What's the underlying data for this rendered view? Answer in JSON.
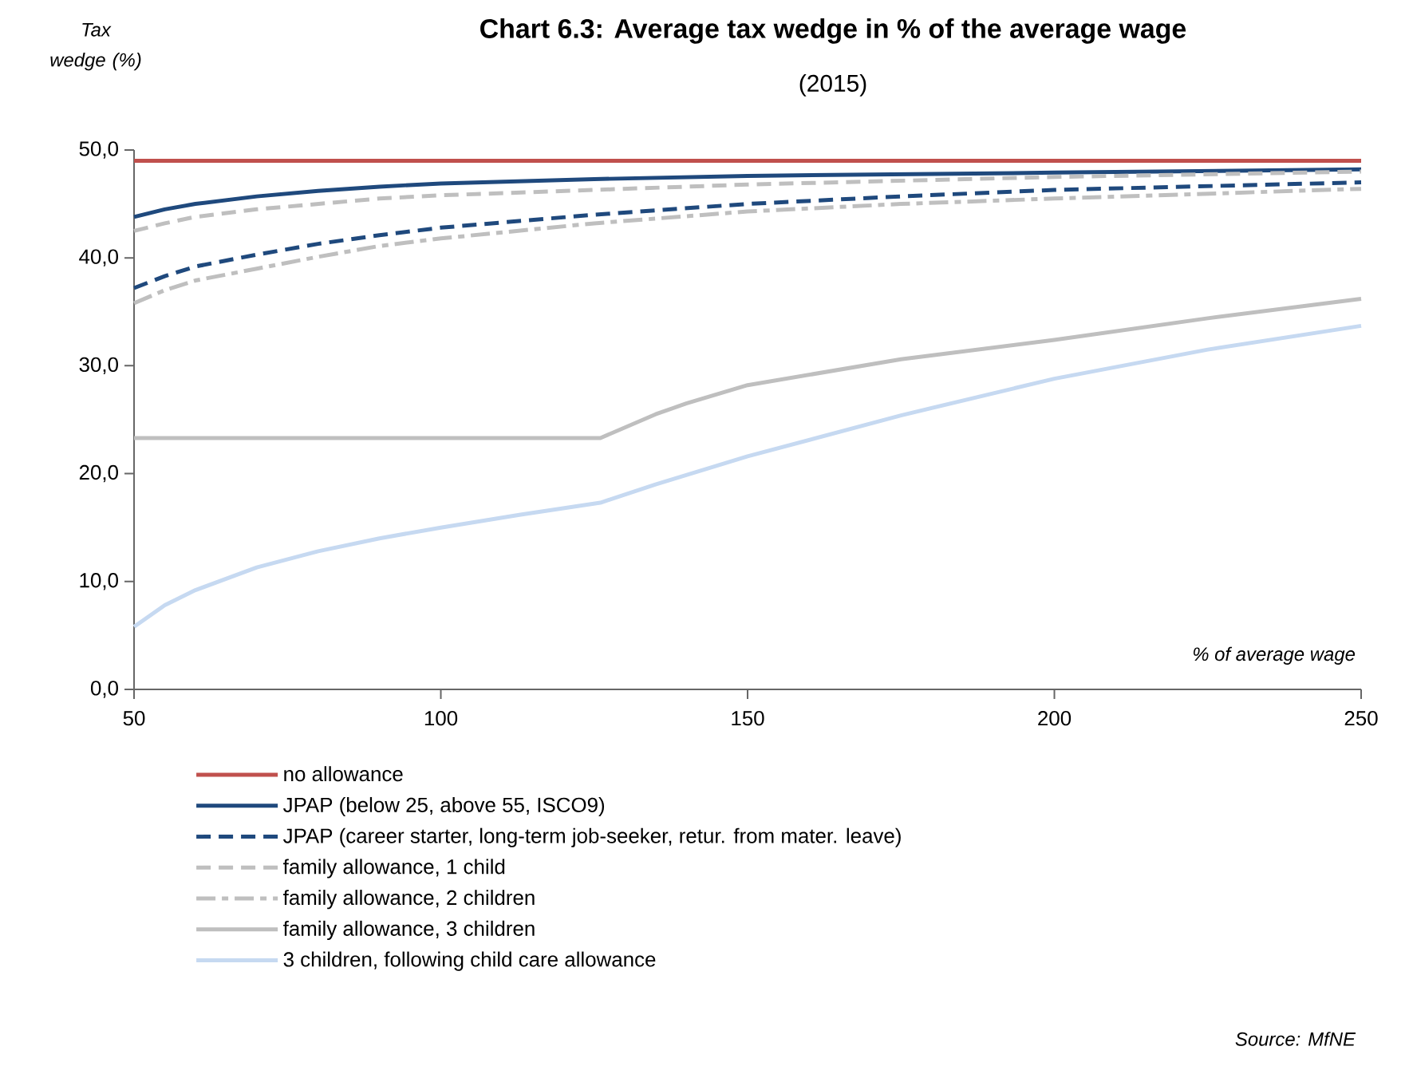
{
  "chart_data": {
    "type": "line",
    "title": "Chart 6.3: Average tax wedge in % of the average wage",
    "subtitle": "(2015)",
    "ylabel": "Tax wedge (%)",
    "xlabel": "% of average wage",
    "annotations": [
      "Source: MfNE"
    ],
    "xlim": [
      50,
      250
    ],
    "xticks": [
      50,
      100,
      150,
      200,
      250
    ],
    "ylim": [
      0,
      50
    ],
    "yticks": [
      {
        "value": 0,
        "label": "0,0"
      },
      {
        "value": 10,
        "label": "10,0"
      },
      {
        "value": 20,
        "label": "20,0"
      },
      {
        "value": 30,
        "label": "30,0"
      },
      {
        "value": 40,
        "label": "40,0"
      },
      {
        "value": 50,
        "label": "50,0"
      }
    ],
    "grid": false,
    "legend": "bottom",
    "marker": "none",
    "series": [
      {
        "name": "no allowance",
        "color": "#c0504d",
        "line_style": "solid",
        "x": [
          50,
          250
        ],
        "values": [
          49.0,
          49.0
        ]
      },
      {
        "name": "JPAP (below 25, above 55, ISCO9)",
        "color": "#1f497d",
        "line_style": "solid",
        "x": [
          50,
          55,
          60,
          70,
          80,
          90,
          100,
          125,
          150,
          200,
          250
        ],
        "values": [
          43.8,
          44.5,
          45.0,
          45.7,
          46.2,
          46.6,
          46.9,
          47.3,
          47.6,
          47.9,
          48.2
        ]
      },
      {
        "name": "JPAP (career starter, long-term job-seeker, retur. from mater. leave)",
        "color": "#1f497d",
        "line_style": "dashed",
        "x": [
          50,
          55,
          60,
          70,
          80,
          90,
          100,
          125,
          150,
          175,
          200,
          250
        ],
        "values": [
          37.2,
          38.3,
          39.2,
          40.3,
          41.3,
          42.1,
          42.8,
          44.0,
          45.0,
          45.7,
          46.3,
          47.0
        ]
      },
      {
        "name": "family allowance, 1 child",
        "color": "#bfbfbf",
        "line_style": "dashed",
        "x": [
          50,
          55,
          60,
          70,
          80,
          90,
          100,
          125,
          150,
          200,
          250
        ],
        "values": [
          42.5,
          43.2,
          43.8,
          44.5,
          45.0,
          45.5,
          45.8,
          46.3,
          46.8,
          47.5,
          48.0
        ]
      },
      {
        "name": "family allowance, 2 children",
        "color": "#bfbfbf",
        "line_style": "dashdot",
        "x": [
          50,
          55,
          60,
          70,
          80,
          90,
          100,
          125,
          150,
          175,
          200,
          250
        ],
        "values": [
          35.8,
          37.0,
          37.9,
          39.0,
          40.1,
          41.1,
          41.8,
          43.2,
          44.3,
          45.0,
          45.5,
          46.4
        ]
      },
      {
        "name": "family allowance, 3 children",
        "color": "#bfbfbf",
        "line_style": "solid",
        "x": [
          50,
          126,
          135,
          140,
          150,
          175,
          200,
          225,
          250
        ],
        "values": [
          23.3,
          23.3,
          25.5,
          26.5,
          28.2,
          30.6,
          32.4,
          34.4,
          36.2
        ]
      },
      {
        "name": "3 children, following child care allowance",
        "color": "#c6d9f1",
        "line_style": "solid",
        "x": [
          50,
          55,
          60,
          70,
          80,
          90,
          100,
          113,
          126,
          135,
          150,
          175,
          200,
          225,
          250
        ],
        "values": [
          5.8,
          7.8,
          9.2,
          11.3,
          12.8,
          14.0,
          15.0,
          16.2,
          17.3,
          19.0,
          21.6,
          25.4,
          28.8,
          31.5,
          33.7
        ]
      }
    ]
  }
}
